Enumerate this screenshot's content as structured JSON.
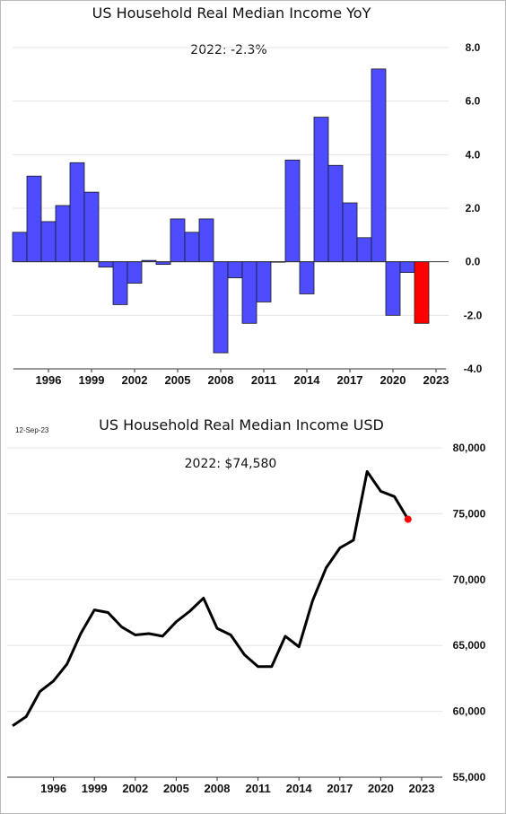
{
  "chart_data": [
    {
      "type": "bar",
      "title": "US Household Real Median Income YoY",
      "annotation": "2022:  -2.3%",
      "ylim": [
        -4.0,
        8.0
      ],
      "yticks": [
        "8.0",
        "6.0",
        "4.0",
        "2.0",
        "0.0",
        "-2.0",
        "-4.0"
      ],
      "xticks": [
        "1996",
        "1999",
        "2002",
        "2005",
        "2008",
        "2011",
        "2014",
        "2017",
        "2020",
        "2023"
      ],
      "grid": true,
      "bar_color": "#4d4dff",
      "highlight_color": "#ff0000",
      "x": [
        1994,
        1995,
        1996,
        1997,
        1998,
        1999,
        2000,
        2001,
        2002,
        2003,
        2004,
        2005,
        2006,
        2007,
        2008,
        2009,
        2010,
        2011,
        2012,
        2013,
        2014,
        2015,
        2016,
        2017,
        2018,
        2019,
        2020,
        2021,
        2022
      ],
      "values": [
        1.1,
        3.2,
        1.5,
        2.1,
        3.7,
        2.6,
        -0.2,
        -1.6,
        -0.8,
        0.05,
        -0.1,
        1.6,
        1.1,
        1.6,
        -3.4,
        -0.6,
        -2.3,
        -1.5,
        0.0,
        3.8,
        -1.2,
        5.4,
        3.6,
        2.2,
        0.9,
        7.2,
        -2.0,
        -0.4,
        -2.3
      ],
      "highlight": 2022
    },
    {
      "type": "line",
      "title": "US Household Real Median Income USD",
      "annotation": "2022:  $74,580",
      "date": "12-Sep-23",
      "ylim": [
        55000,
        80000
      ],
      "yticks": [
        "80,000",
        "75,000",
        "70,000",
        "65,000",
        "60,000",
        "55,000"
      ],
      "xticks": [
        "1996",
        "1999",
        "2002",
        "2005",
        "2008",
        "2011",
        "2014",
        "2017",
        "2020",
        "2023"
      ],
      "grid": true,
      "line_color": "#000000",
      "marker_color": "#ff0000",
      "x": [
        1993,
        1994,
        1995,
        1996,
        1997,
        1998,
        1999,
        2000,
        2001,
        2002,
        2003,
        2004,
        2005,
        2006,
        2007,
        2008,
        2009,
        2010,
        2011,
        2012,
        2013,
        2014,
        2015,
        2016,
        2017,
        2018,
        2019,
        2020,
        2021,
        2022
      ],
      "values": [
        58900,
        59600,
        61500,
        62300,
        63600,
        65900,
        67700,
        67500,
        66400,
        65800,
        65900,
        65700,
        66800,
        67600,
        68600,
        66300,
        65800,
        64300,
        63400,
        63400,
        65700,
        64900,
        68400,
        70900,
        72400,
        73000,
        78200,
        76700,
        76300,
        74580
      ],
      "highlight": 2022
    }
  ]
}
